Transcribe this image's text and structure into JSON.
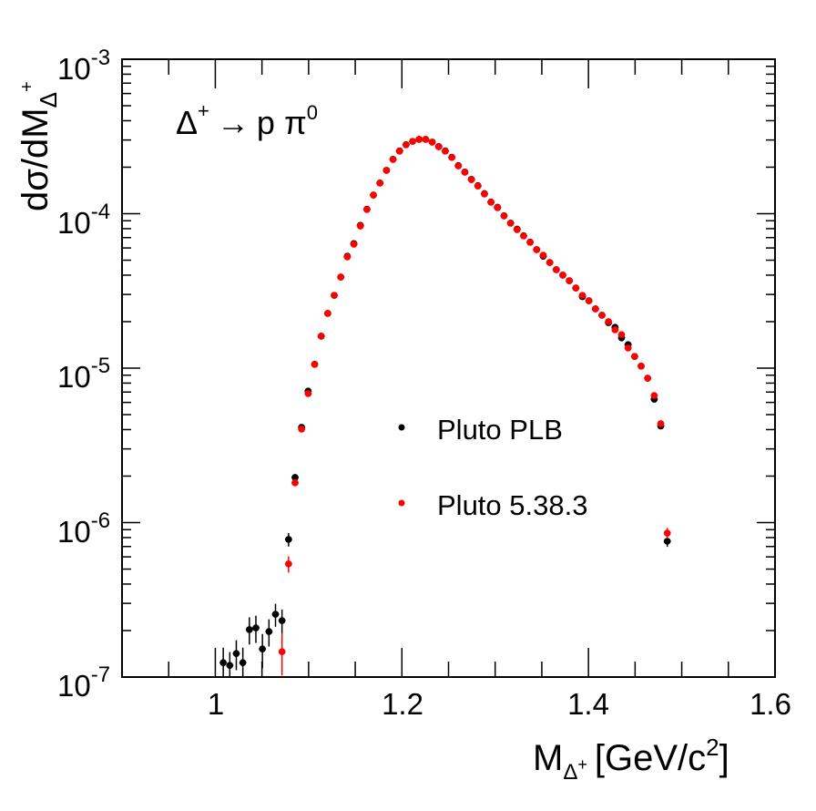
{
  "chart_data": {
    "type": "scatter",
    "title": "",
    "annotation": {
      "base": "Δ",
      "sup1": "+",
      "arrow": "→",
      "p": "p",
      "pi": "π",
      "sup2": "0"
    },
    "xlabel": {
      "main": "M",
      "sub": "Δ",
      "subsup": "+",
      "unit_open": "[GeV/c",
      "unit_sup": "2",
      "unit_close": "]"
    },
    "ylabel": {
      "main": "dσ/dM",
      "sub": "Δ",
      "subsup": "+"
    },
    "xlim": [
      0.9,
      1.6
    ],
    "ylim": [
      1e-07,
      0.001
    ],
    "yscale": "log",
    "x_ticks": [
      {
        "value": 1.0,
        "label": "1"
      },
      {
        "value": 1.2,
        "label": "1.2"
      },
      {
        "value": 1.4,
        "label": "1.4"
      },
      {
        "value": 1.6,
        "label": "1.6"
      }
    ],
    "y_ticks": [
      {
        "value": 0.001,
        "base": "10",
        "exp": "-3"
      },
      {
        "value": 0.0001,
        "base": "10",
        "exp": "-4"
      },
      {
        "value": 1e-05,
        "base": "10",
        "exp": "-5"
      },
      {
        "value": 1e-06,
        "base": "10",
        "exp": "-6"
      },
      {
        "value": 1e-07,
        "base": "10",
        "exp": "-7"
      }
    ],
    "legend_position": "center-right",
    "x": [
      1.0085,
      1.0155,
      1.0225,
      1.0295,
      1.0365,
      1.0435,
      1.0505,
      1.0575,
      1.0645,
      1.0715,
      1.0785,
      1.0855,
      1.0925,
      1.0995,
      1.1065,
      1.1135,
      1.1205,
      1.1275,
      1.1345,
      1.1415,
      1.1485,
      1.1555,
      1.1625,
      1.1695,
      1.1765,
      1.1835,
      1.1905,
      1.1975,
      1.2045,
      1.2115,
      1.2185,
      1.2255,
      1.2325,
      1.2395,
      1.2465,
      1.2535,
      1.2605,
      1.2675,
      1.2745,
      1.2815,
      1.2885,
      1.2955,
      1.3025,
      1.3095,
      1.3165,
      1.3235,
      1.3305,
      1.3375,
      1.3445,
      1.3515,
      1.3585,
      1.3655,
      1.3725,
      1.3795,
      1.3865,
      1.3935,
      1.4005,
      1.4075,
      1.4145,
      1.4215,
      1.4285,
      1.4355,
      1.4425,
      1.4495,
      1.4565,
      1.4635,
      1.4705,
      1.4775,
      1.4845
    ],
    "series": [
      {
        "name": "Pluto PLB",
        "color": "#000000",
        "values": [
          1.24e-07,
          1.19e-07,
          1.42e-07,
          1.24e-07,
          2.03e-07,
          2.08e-07,
          1.52e-07,
          1.97e-07,
          2.55e-07,
          2.32e-07,
          7.78e-07,
          1.96e-06,
          4.14e-06,
          7.1e-06,
          1.06e-05,
          1.61e-05,
          2.26e-05,
          2.96e-05,
          3.89e-05,
          5.3e-05,
          6.4e-05,
          8.4e-05,
          0.000107,
          0.000132,
          0.000158,
          0.000191,
          0.000225,
          0.000255,
          0.00028,
          0.000294,
          0.000303,
          0.000303,
          0.000291,
          0.000272,
          0.000255,
          0.000232,
          0.000205,
          0.000186,
          0.000167,
          0.000152,
          0.000135,
          0.000119,
          0.00011,
          9.7e-05,
          8.7e-05,
          7.95e-05,
          7.2e-05,
          6.55e-05,
          5.85e-05,
          5.3e-05,
          4.83e-05,
          4.34e-05,
          4e-05,
          3.68e-05,
          3.3e-05,
          2.9e-05,
          2.73e-05,
          2.42e-05,
          2.2e-05,
          1.97e-05,
          1.84e-05,
          1.57e-05,
          1.42e-05,
          1.19e-05,
          1.03e-05,
          8.61e-06,
          6.29e-06,
          4.22e-06,
          7.57e-07
        ],
        "rel_errors": [
          0.25,
          0.22,
          0.22,
          0.25,
          0.2,
          0.2,
          0.25,
          0.2,
          0.17,
          0.18,
          0.1,
          0.05,
          0.03,
          0.02,
          0.02,
          0.01,
          0.01,
          0.01,
          0.01,
          0.01,
          0.01,
          0.01,
          0.01,
          0.01,
          0.01,
          0.01,
          0.01,
          0.01,
          0.01,
          0.01,
          0.01,
          0.01,
          0.01,
          0.01,
          0.01,
          0.01,
          0.01,
          0.01,
          0.01,
          0.01,
          0.01,
          0.01,
          0.01,
          0.01,
          0.01,
          0.01,
          0.01,
          0.01,
          0.01,
          0.01,
          0.01,
          0.01,
          0.01,
          0.01,
          0.01,
          0.01,
          0.01,
          0.01,
          0.01,
          0.01,
          0.01,
          0.01,
          0.01,
          0.01,
          0.01,
          0.02,
          0.03,
          0.03,
          0.08
        ]
      },
      {
        "name": "Pluto 5.38.3",
        "color": "#ff0000",
        "values": [
          null,
          null,
          null,
          null,
          null,
          null,
          null,
          null,
          null,
          1.46e-07,
          5.4e-07,
          1.81e-06,
          4.03e-06,
          6.84e-06,
          1.057e-05,
          1.61e-05,
          2.26e-05,
          2.96e-05,
          3.89e-05,
          5.25e-05,
          6.34e-05,
          8.32e-05,
          0.0001064,
          0.0001321,
          0.0001577,
          0.0001906,
          0.0002244,
          0.000254,
          0.000279,
          0.000294,
          0.000303,
          0.000303,
          0.00029,
          0.000271,
          0.000254,
          0.000231,
          0.000204,
          0.0001855,
          0.000166,
          0.000151,
          0.000134,
          0.0001186,
          0.0001093,
          9.66e-05,
          8.67e-05,
          7.88e-05,
          7.17e-05,
          6.52e-05,
          5.85e-05,
          5.39e-05,
          4.83e-05,
          4.34e-05,
          4e-05,
          3.68e-05,
          3.3e-05,
          2.96e-05,
          2.73e-05,
          2.42e-05,
          2.2e-05,
          2e-05,
          1.77e-05,
          1.65e-05,
          1.35e-05,
          1.19e-05,
          1.03e-05,
          8.61e-06,
          6.65e-06,
          4.37e-06,
          8.55e-07
        ],
        "rel_errors": [
          0,
          0,
          0,
          0,
          0,
          0,
          0,
          0,
          0,
          0.3,
          0.12,
          0.05,
          0.03,
          0.02,
          0.02,
          0.01,
          0.01,
          0.01,
          0.01,
          0.01,
          0.01,
          0.01,
          0.01,
          0.01,
          0.01,
          0.01,
          0.01,
          0.01,
          0.01,
          0.01,
          0.01,
          0.01,
          0.01,
          0.01,
          0.01,
          0.01,
          0.01,
          0.01,
          0.01,
          0.01,
          0.01,
          0.01,
          0.01,
          0.01,
          0.01,
          0.01,
          0.01,
          0.01,
          0.01,
          0.01,
          0.01,
          0.01,
          0.01,
          0.01,
          0.01,
          0.01,
          0.01,
          0.01,
          0.01,
          0.01,
          0.01,
          0.01,
          0.01,
          0.01,
          0.01,
          0.02,
          0.03,
          0.03,
          0.08
        ]
      }
    ]
  }
}
